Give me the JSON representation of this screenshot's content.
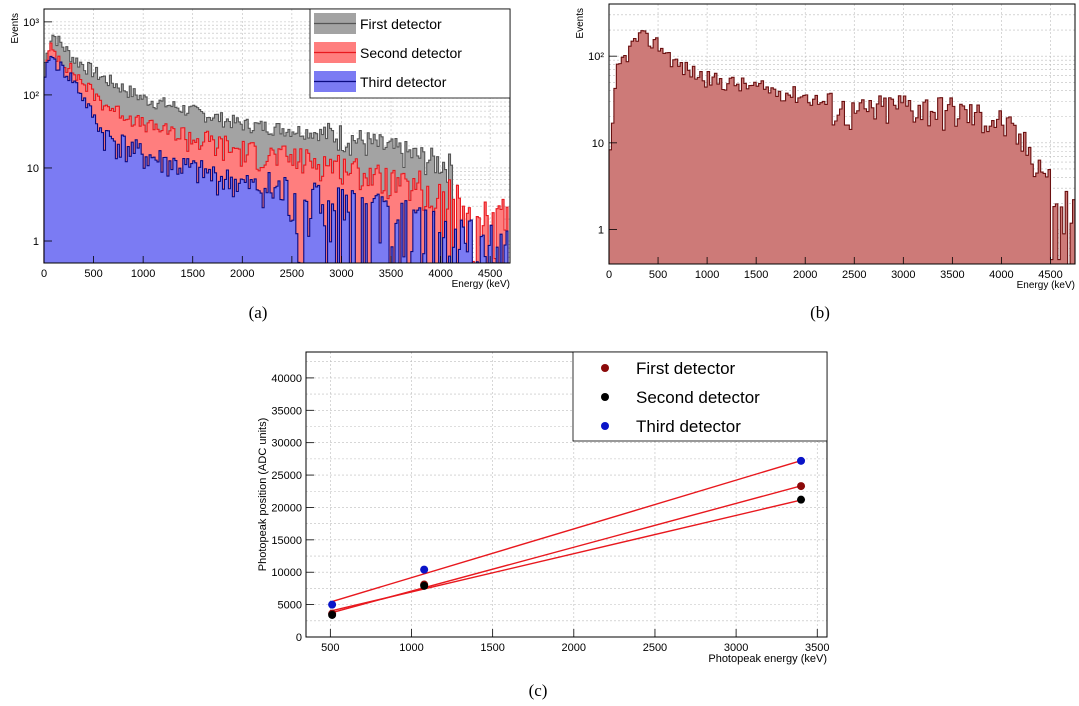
{
  "chart_data": [
    {
      "panel": "a",
      "type": "histogram",
      "xlabel": "Energy (keV)",
      "ylabel": "Events",
      "xlim": [
        0,
        4700
      ],
      "ylim": [
        0.5,
        1500
      ],
      "yscale": "log",
      "grid": true,
      "legend_position": "top-right",
      "xticks": [
        "0",
        "500",
        "1000",
        "1500",
        "2000",
        "2500",
        "3000",
        "3500",
        "4000",
        "4500"
      ],
      "yticks": [
        "1",
        "10",
        "10²",
        "10³"
      ],
      "bin_width_keV": 20,
      "series": [
        {
          "name": "First detector",
          "color": "#a3a3a3",
          "line": "#555555",
          "approx_shape": {
            "peak_counts": 700,
            "peak_energy_keV": 80,
            "counts_at_1000": 90,
            "counts_at_2000": 40,
            "counts_at_3000": 28,
            "counts_at_4000": 12,
            "end_energy_keV": 4100
          }
        },
        {
          "name": "Second detector",
          "color": "#ff7e7e",
          "line": "#e8181e",
          "approx_shape": {
            "peak_counts": 450,
            "peak_energy_keV": 60,
            "counts_at_1000": 40,
            "counts_at_2000": 17,
            "counts_at_3000": 11,
            "counts_at_4000": 4,
            "end_energy_keV": 4700
          }
        },
        {
          "name": "Third detector",
          "color": "#7b7bf3",
          "line": "#0a0a80",
          "approx_shape": {
            "peak_counts": 350,
            "peak_energy_keV": 50,
            "counts_at_1000": 15,
            "counts_at_2000": 6,
            "counts_at_3000": 3,
            "counts_at_4000": 1.5,
            "end_energy_keV": 4700
          }
        }
      ]
    },
    {
      "panel": "b",
      "type": "histogram",
      "xlabel": "Energy (keV)",
      "ylabel": "Events",
      "xlim": [
        0,
        4750
      ],
      "ylim": [
        0.4,
        400
      ],
      "yscale": "log",
      "grid": true,
      "xticks": [
        "0",
        "500",
        "1000",
        "1500",
        "2000",
        "2500",
        "3000",
        "3500",
        "4000",
        "4500"
      ],
      "yticks": [
        "1",
        "10",
        "10²"
      ],
      "bin_width_keV": 25,
      "series": [
        {
          "name": "",
          "color": "#cd7a78",
          "line": "#6b1010",
          "approx_shape": {
            "peak_counts": 170,
            "peak_energy_keV": 300,
            "counts_at_1000": 55,
            "counts_at_2000": 35,
            "counts_at_3000": 28,
            "counts_at_4000": 18,
            "counts_at_4700": 1.5
          }
        }
      ]
    },
    {
      "panel": "c",
      "type": "scatter",
      "xlabel": "Photopeak energy (keV)",
      "ylabel": "Photopeak position (ADC units)",
      "xlim": [
        350,
        3560
      ],
      "ylim": [
        0,
        44000
      ],
      "grid": true,
      "legend_position": "top-right",
      "xticks": [
        "500",
        "1000",
        "1500",
        "2000",
        "2500",
        "3000",
        "3500"
      ],
      "yticks": [
        "0",
        "5000",
        "10000",
        "15000",
        "20000",
        "25000",
        "30000",
        "35000",
        "40000"
      ],
      "fit_line_color": "#e8181e",
      "series": [
        {
          "name": "First detector",
          "color": "#8b0a0a",
          "x": [
            511,
            1078,
            3400
          ],
          "y": [
            3600,
            8100,
            23300
          ],
          "fit": {
            "x": [
              500,
              3410
            ],
            "y": [
              3700,
              23400
            ]
          }
        },
        {
          "name": "Second detector",
          "color": "#000000",
          "x": [
            511,
            1078,
            3400
          ],
          "y": [
            3400,
            7900,
            21200
          ],
          "fit": {
            "x": [
              500,
              3410
            ],
            "y": [
              4000,
              21200
            ]
          }
        },
        {
          "name": "Third detector",
          "color": "#0a14c8",
          "x": [
            511,
            1078,
            3400
          ],
          "y": [
            5000,
            10400,
            27200
          ],
          "fit": {
            "x": [
              500,
              3410
            ],
            "y": [
              5400,
              27300
            ]
          }
        }
      ]
    }
  ],
  "captions": [
    "(a)",
    "(b)",
    "(c)"
  ]
}
